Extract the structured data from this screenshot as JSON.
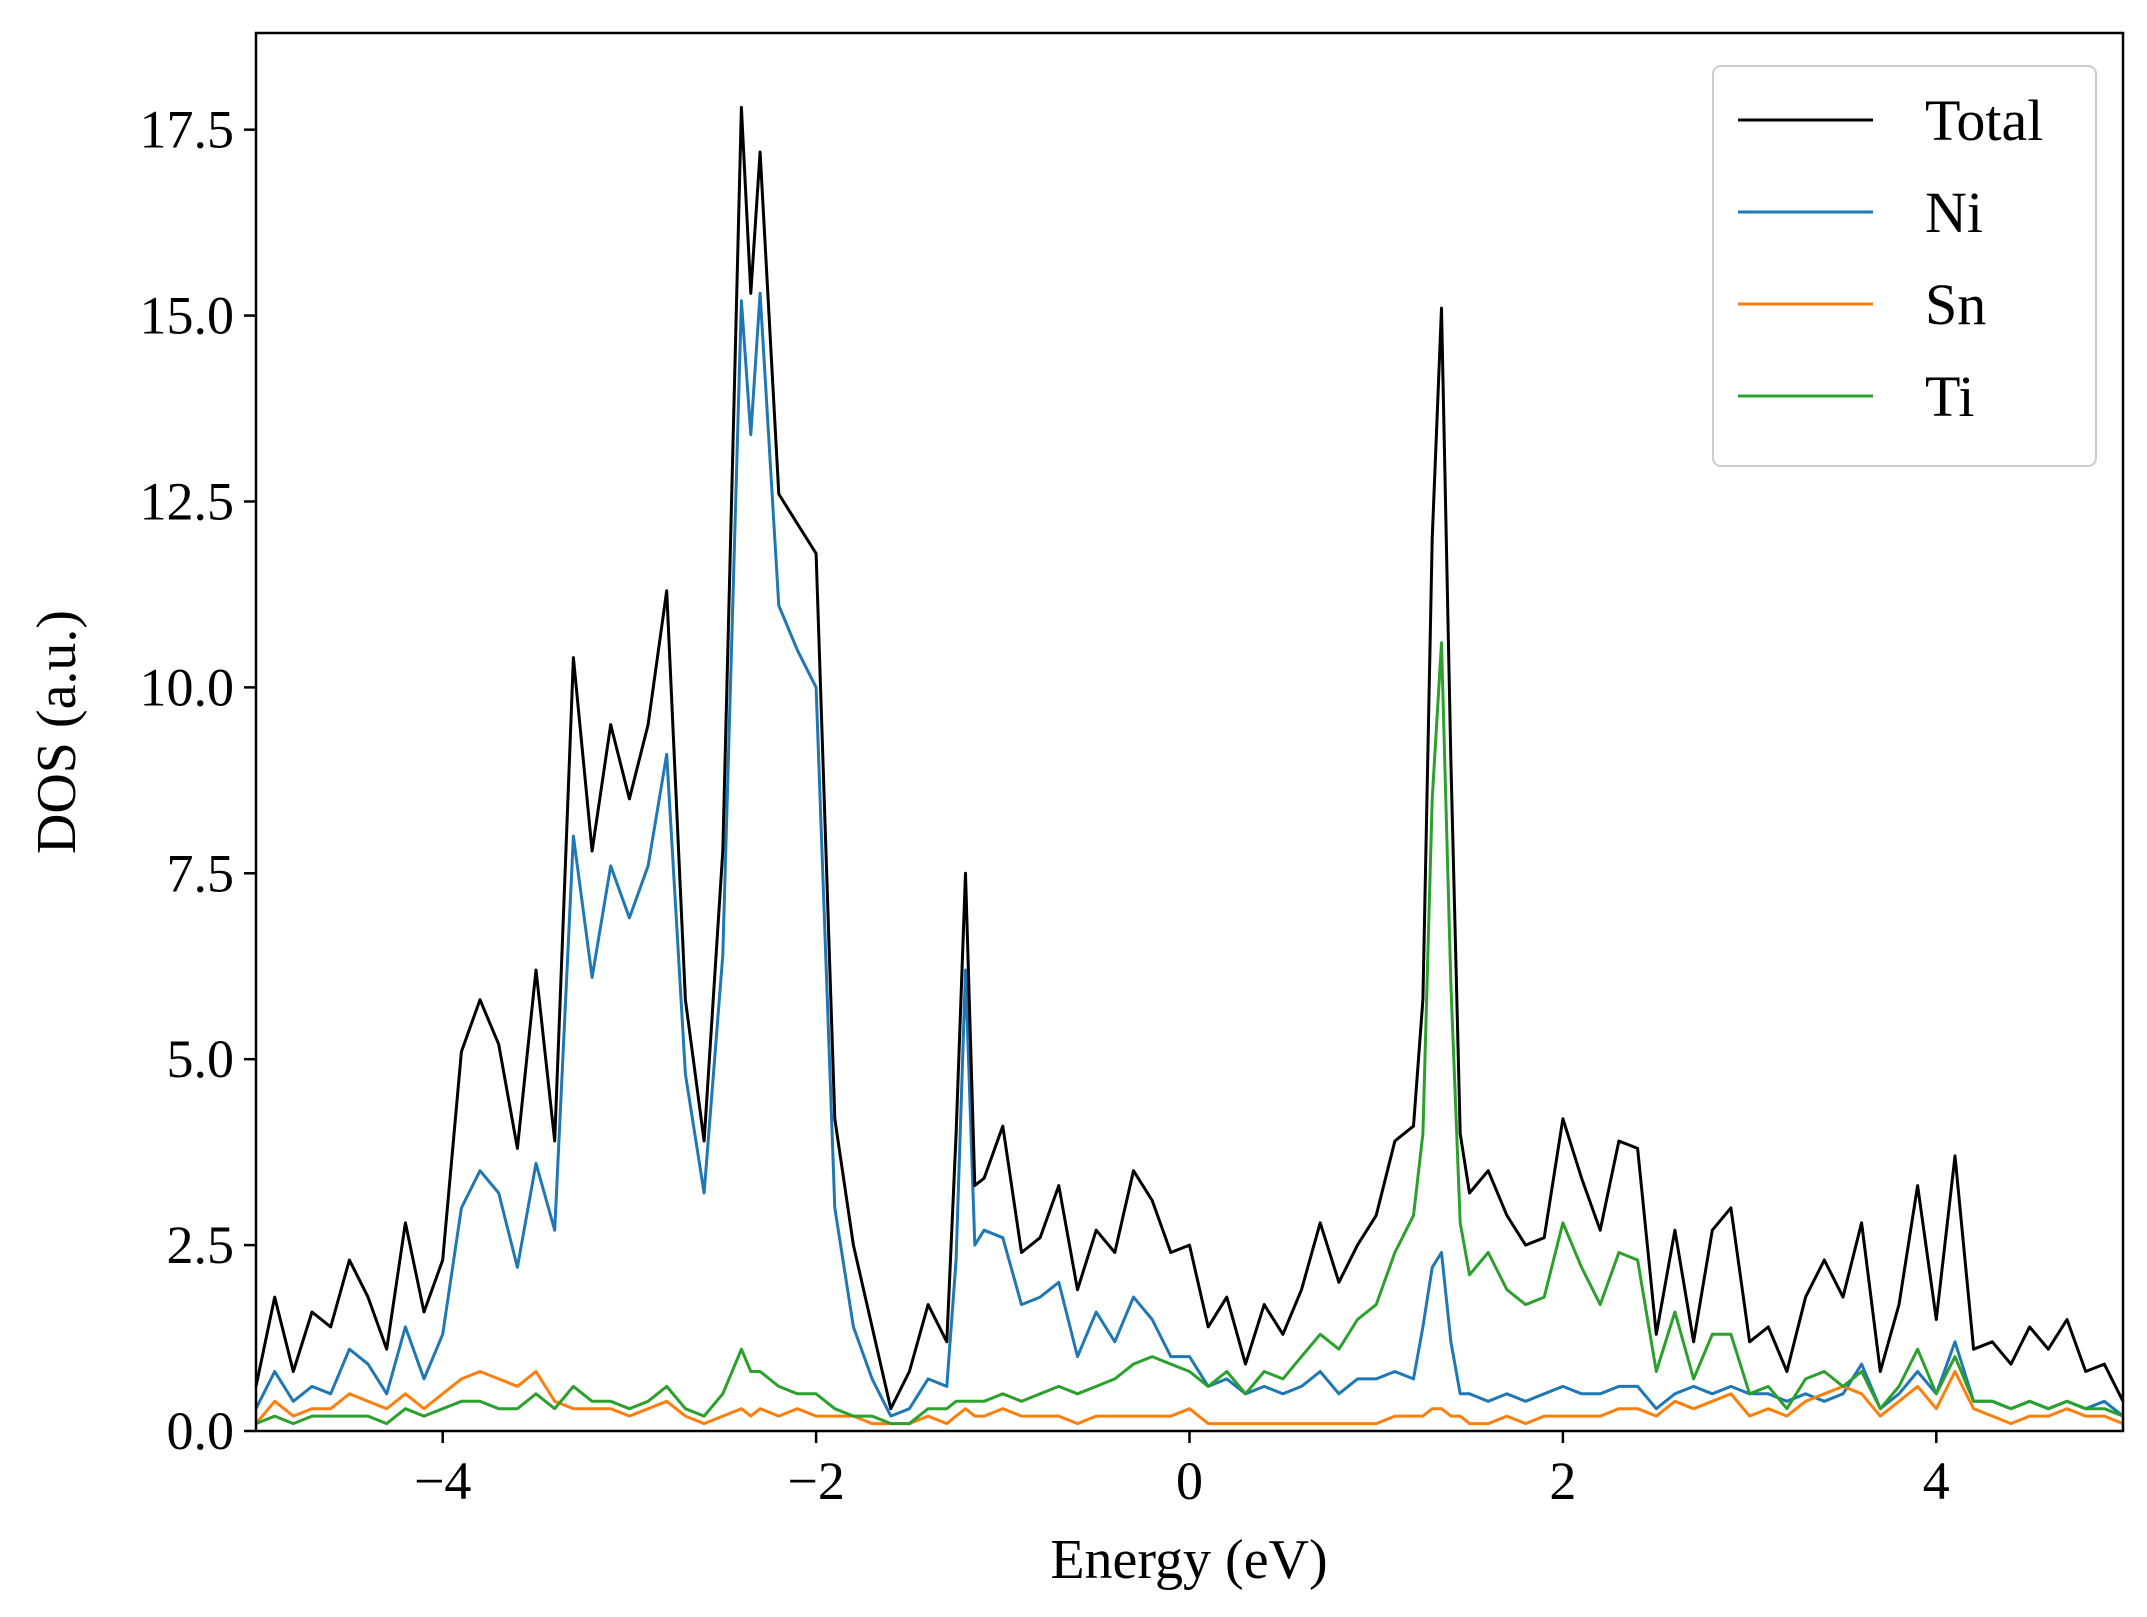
{
  "chart_data": {
    "type": "line",
    "title": "",
    "xlabel": "Energy (eV)",
    "ylabel": "DOS (a.u.)",
    "xlim": [
      -5,
      5
    ],
    "ylim": [
      0,
      18.8
    ],
    "xticks": [
      -4,
      -2,
      0,
      2,
      4
    ],
    "xtick_labels": [
      "−4",
      "−2",
      "0",
      "2",
      "4"
    ],
    "yticks": [
      0,
      2.5,
      5,
      7.5,
      10,
      12.5,
      15,
      17.5
    ],
    "ytick_labels": [
      "0.0",
      "2.5",
      "5.0",
      "7.5",
      "10.0",
      "12.5",
      "15.0",
      "17.5"
    ],
    "grid": false,
    "legend_position": "top-right",
    "x": [
      -5.0,
      -4.9,
      -4.8,
      -4.7,
      -4.6,
      -4.5,
      -4.4,
      -4.3,
      -4.2,
      -4.1,
      -4.0,
      -3.9,
      -3.8,
      -3.7,
      -3.6,
      -3.5,
      -3.4,
      -3.3,
      -3.2,
      -3.1,
      -3.0,
      -2.9,
      -2.8,
      -2.7,
      -2.6,
      -2.5,
      -2.4,
      -2.35,
      -2.3,
      -2.2,
      -2.1,
      -2.0,
      -1.9,
      -1.8,
      -1.7,
      -1.6,
      -1.5,
      -1.4,
      -1.3,
      -1.25,
      -1.2,
      -1.15,
      -1.1,
      -1.0,
      -0.9,
      -0.8,
      -0.7,
      -0.6,
      -0.5,
      -0.4,
      -0.3,
      -0.2,
      -0.1,
      0.0,
      0.1,
      0.2,
      0.3,
      0.4,
      0.5,
      0.6,
      0.7,
      0.8,
      0.9,
      1.0,
      1.1,
      1.2,
      1.25,
      1.3,
      1.35,
      1.4,
      1.45,
      1.5,
      1.6,
      1.7,
      1.8,
      1.9,
      2.0,
      2.1,
      2.2,
      2.3,
      2.4,
      2.5,
      2.6,
      2.7,
      2.8,
      2.9,
      3.0,
      3.1,
      3.2,
      3.3,
      3.4,
      3.5,
      3.6,
      3.7,
      3.8,
      3.9,
      4.0,
      4.1,
      4.2,
      4.3,
      4.4,
      4.5,
      4.6,
      4.7,
      4.8,
      4.9,
      5.0
    ],
    "series": [
      {
        "name": "Total",
        "color": "#000000",
        "values": [
          0.6,
          1.8,
          0.8,
          1.6,
          1.4,
          2.3,
          1.8,
          1.1,
          2.8,
          1.6,
          2.3,
          5.1,
          5.8,
          5.2,
          3.8,
          6.2,
          3.9,
          10.4,
          7.8,
          9.5,
          8.5,
          9.5,
          11.3,
          5.8,
          3.9,
          7.8,
          17.8,
          15.3,
          17.2,
          12.6,
          12.2,
          11.8,
          4.2,
          2.5,
          1.4,
          0.3,
          0.8,
          1.7,
          1.2,
          4.0,
          7.5,
          3.3,
          3.4,
          4.1,
          2.4,
          2.6,
          3.3,
          1.9,
          2.7,
          2.4,
          3.5,
          3.1,
          2.4,
          2.5,
          1.4,
          1.8,
          0.9,
          1.7,
          1.3,
          1.9,
          2.8,
          2.0,
          2.5,
          2.9,
          3.9,
          4.1,
          5.8,
          12.0,
          15.1,
          9.0,
          4.0,
          3.2,
          3.5,
          2.9,
          2.5,
          2.6,
          4.2,
          3.4,
          2.7,
          3.9,
          3.8,
          1.3,
          2.7,
          1.2,
          2.7,
          3.0,
          1.2,
          1.4,
          0.8,
          1.8,
          2.3,
          1.8,
          2.8,
          0.8,
          1.7,
          3.3,
          1.5,
          3.7,
          1.1,
          1.2,
          0.9,
          1.4,
          1.1,
          1.5,
          0.8,
          0.9,
          0.4
        ]
      },
      {
        "name": "Ni",
        "color": "#1f77b4",
        "values": [
          0.3,
          0.8,
          0.4,
          0.6,
          0.5,
          1.1,
          0.9,
          0.5,
          1.4,
          0.7,
          1.3,
          3.0,
          3.5,
          3.2,
          2.2,
          3.6,
          2.7,
          8.0,
          6.1,
          7.6,
          6.9,
          7.6,
          9.1,
          4.8,
          3.2,
          6.4,
          15.2,
          13.4,
          15.3,
          11.1,
          10.5,
          10.0,
          3.0,
          1.4,
          0.7,
          0.2,
          0.3,
          0.7,
          0.6,
          2.3,
          6.2,
          2.5,
          2.7,
          2.6,
          1.7,
          1.8,
          2.0,
          1.0,
          1.6,
          1.2,
          1.8,
          1.5,
          1.0,
          1.0,
          0.6,
          0.7,
          0.5,
          0.6,
          0.5,
          0.6,
          0.8,
          0.5,
          0.7,
          0.7,
          0.8,
          0.7,
          1.4,
          2.2,
          2.4,
          1.2,
          0.5,
          0.5,
          0.4,
          0.5,
          0.4,
          0.5,
          0.6,
          0.5,
          0.5,
          0.6,
          0.6,
          0.3,
          0.5,
          0.6,
          0.5,
          0.6,
          0.5,
          0.5,
          0.4,
          0.5,
          0.4,
          0.5,
          0.9,
          0.3,
          0.5,
          0.8,
          0.5,
          1.2,
          0.4,
          0.4,
          0.3,
          0.4,
          0.3,
          0.4,
          0.3,
          0.4,
          0.2
        ]
      },
      {
        "name": "Sn",
        "color": "#ff7f0e",
        "values": [
          0.1,
          0.4,
          0.2,
          0.3,
          0.3,
          0.5,
          0.4,
          0.3,
          0.5,
          0.3,
          0.5,
          0.7,
          0.8,
          0.7,
          0.6,
          0.8,
          0.4,
          0.3,
          0.3,
          0.3,
          0.2,
          0.3,
          0.4,
          0.2,
          0.1,
          0.2,
          0.3,
          0.2,
          0.3,
          0.2,
          0.3,
          0.2,
          0.2,
          0.2,
          0.1,
          0.1,
          0.1,
          0.2,
          0.1,
          0.2,
          0.3,
          0.2,
          0.2,
          0.3,
          0.2,
          0.2,
          0.2,
          0.1,
          0.2,
          0.2,
          0.2,
          0.2,
          0.2,
          0.3,
          0.1,
          0.1,
          0.1,
          0.1,
          0.1,
          0.1,
          0.1,
          0.1,
          0.1,
          0.1,
          0.2,
          0.2,
          0.2,
          0.3,
          0.3,
          0.2,
          0.2,
          0.1,
          0.1,
          0.2,
          0.1,
          0.2,
          0.2,
          0.2,
          0.2,
          0.3,
          0.3,
          0.2,
          0.4,
          0.3,
          0.4,
          0.5,
          0.2,
          0.3,
          0.2,
          0.4,
          0.5,
          0.6,
          0.5,
          0.2,
          0.4,
          0.6,
          0.3,
          0.8,
          0.3,
          0.2,
          0.1,
          0.2,
          0.2,
          0.3,
          0.2,
          0.2,
          0.1
        ]
      },
      {
        "name": "Ti",
        "color": "#2ca02c",
        "values": [
          0.1,
          0.2,
          0.1,
          0.2,
          0.2,
          0.2,
          0.2,
          0.1,
          0.3,
          0.2,
          0.3,
          0.4,
          0.4,
          0.3,
          0.3,
          0.5,
          0.3,
          0.6,
          0.4,
          0.4,
          0.3,
          0.4,
          0.6,
          0.3,
          0.2,
          0.5,
          1.1,
          0.8,
          0.8,
          0.6,
          0.5,
          0.5,
          0.3,
          0.2,
          0.2,
          0.1,
          0.1,
          0.3,
          0.3,
          0.4,
          0.4,
          0.4,
          0.4,
          0.5,
          0.4,
          0.5,
          0.6,
          0.5,
          0.6,
          0.7,
          0.9,
          1.0,
          0.9,
          0.8,
          0.6,
          0.8,
          0.5,
          0.8,
          0.7,
          1.0,
          1.3,
          1.1,
          1.5,
          1.7,
          2.4,
          2.9,
          4.0,
          8.5,
          10.6,
          6.0,
          2.8,
          2.1,
          2.4,
          1.9,
          1.7,
          1.8,
          2.8,
          2.2,
          1.7,
          2.4,
          2.3,
          0.8,
          1.6,
          0.7,
          1.3,
          1.3,
          0.5,
          0.6,
          0.3,
          0.7,
          0.8,
          0.6,
          0.8,
          0.3,
          0.6,
          1.1,
          0.5,
          1.0,
          0.4,
          0.4,
          0.3,
          0.4,
          0.3,
          0.4,
          0.3,
          0.3,
          0.2
        ]
      }
    ]
  }
}
